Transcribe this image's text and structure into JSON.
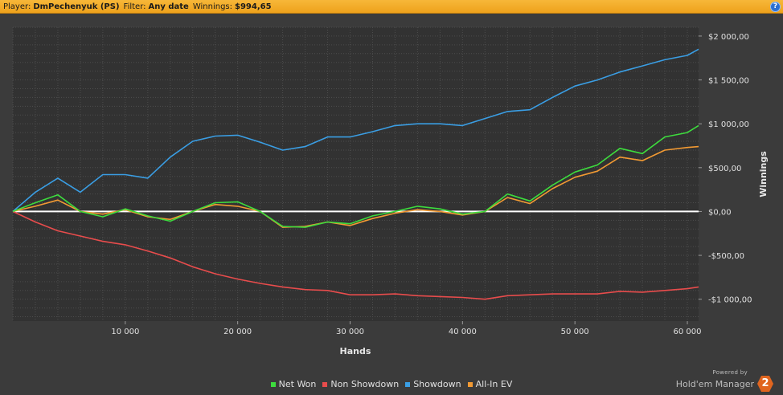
{
  "header": {
    "player_label": "Player:",
    "player_value": "DmPechenyuk (PS)",
    "filter_label": "Filter:",
    "filter_value": "Any date",
    "winnings_label": "Winnings:",
    "winnings_value": "$994,65",
    "help_glyph": "?"
  },
  "branding": {
    "powered_by": "Powered by",
    "name": "Hold'em Manager",
    "version": "2"
  },
  "chart_data": {
    "type": "line",
    "xlabel": "Hands",
    "ylabel": "Winnings",
    "xlim": [
      0,
      61000
    ],
    "ylim": [
      -1250,
      2100
    ],
    "x_ticks": [
      10000,
      20000,
      30000,
      40000,
      50000,
      60000
    ],
    "x_tick_labels": [
      "10 000",
      "20 000",
      "30 000",
      "40 000",
      "50 000",
      "60 000"
    ],
    "y_ticks": [
      2000,
      1500,
      1000,
      500,
      0,
      -500,
      -1000
    ],
    "y_tick_labels": [
      "$2 000,00",
      "$1 500,00",
      "$1 000,00",
      "$500,00",
      "$0,00",
      "-$500,00",
      "-$1 000,00"
    ],
    "grid": true,
    "legend_position": "bottom-center",
    "x": [
      0,
      2000,
      4000,
      6000,
      8000,
      10000,
      12000,
      14000,
      16000,
      18000,
      20000,
      22000,
      24000,
      26000,
      28000,
      30000,
      32000,
      34000,
      36000,
      38000,
      40000,
      42000,
      44000,
      46000,
      48000,
      50000,
      52000,
      54000,
      56000,
      58000,
      60000,
      61000
    ],
    "series": [
      {
        "name": "Net Won",
        "color": "#3ddc3d",
        "values": [
          0,
          100,
          190,
          0,
          -60,
          30,
          -50,
          -110,
          0,
          100,
          110,
          0,
          -170,
          -180,
          -120,
          -140,
          -50,
          0,
          60,
          30,
          -30,
          0,
          200,
          120,
          300,
          450,
          530,
          720,
          660,
          850,
          900,
          980
        ]
      },
      {
        "name": "Non Showdown",
        "color": "#e84c4c",
        "values": [
          0,
          -120,
          -220,
          -280,
          -340,
          -380,
          -450,
          -530,
          -630,
          -710,
          -770,
          -820,
          -860,
          -890,
          -900,
          -950,
          -950,
          -940,
          -960,
          -970,
          -980,
          -1000,
          -960,
          -950,
          -940,
          -940,
          -940,
          -910,
          -920,
          -900,
          -880,
          -860
        ]
      },
      {
        "name": "Showdown",
        "color": "#3a9ee4",
        "values": [
          0,
          220,
          380,
          220,
          420,
          420,
          380,
          620,
          800,
          860,
          870,
          790,
          700,
          740,
          850,
          850,
          910,
          980,
          1000,
          1000,
          980,
          1060,
          1140,
          1160,
          1300,
          1430,
          1500,
          1590,
          1660,
          1730,
          1780,
          1850
        ]
      },
      {
        "name": "All-In EV",
        "color": "#f29a33",
        "values": [
          0,
          60,
          130,
          0,
          -30,
          20,
          -60,
          -90,
          0,
          80,
          60,
          0,
          -180,
          -170,
          -120,
          -160,
          -80,
          -20,
          20,
          0,
          -40,
          0,
          160,
          90,
          260,
          390,
          460,
          620,
          580,
          700,
          730,
          740
        ]
      }
    ]
  }
}
